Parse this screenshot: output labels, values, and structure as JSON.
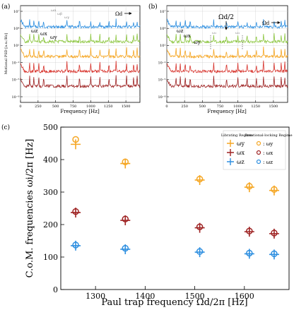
{
  "colors": {
    "blue": "#2e8fe0",
    "green": "#8cc63f",
    "orange": "#f5a623",
    "red": "#d7322b",
    "darkred": "#9e2222",
    "grid_gray": "#d0d0d0"
  },
  "panel_a": {
    "label": "(a)",
    "ylabel": "Motional PSD [a.u./Hz]",
    "xlabel": "Frequency [Hz]",
    "xticks": [
      "0",
      "250",
      "500",
      "750",
      "1000",
      "1250",
      "1500"
    ],
    "yticks": [
      "10⁷",
      "10⁴",
      "10¹",
      "10⁻²",
      "10⁻⁵",
      "10⁻⁸"
    ],
    "omega_d": "Ωd",
    "annot_gray": [
      "ωα",
      "ωβ",
      "ωγ"
    ],
    "annot_black": [
      "ωz",
      "ωx",
      "ωy"
    ]
  },
  "panel_b": {
    "label": "(b)",
    "xlabel": "Frequency [Hz]",
    "xticks": [
      "0",
      "250",
      "500",
      "750",
      "1000",
      "1250",
      "1500"
    ],
    "yticks": [
      "10⁷",
      "10⁴",
      "10¹",
      "10⁻²",
      "10⁻⁵",
      "10⁻⁸"
    ],
    "omega_d": "Ωd",
    "omega_d_half": "Ωd/2",
    "annot_black": [
      "ωz",
      "ωx",
      "ωy"
    ],
    "annot_gray": [
      "ω₃",
      "ω₃"
    ]
  },
  "panel_c": {
    "label": "(c)",
    "legend_col1": "Librating Regime",
    "legend_col2": "Rotational-locking Regime",
    "legend_entries": [
      "ωy",
      "ωx",
      "ωz"
    ]
  },
  "chart_data": [
    {
      "type": "line",
      "panel": "(a)",
      "xlabel": "Frequency [Hz]",
      "ylabel": "Motional PSD [a.u./Hz]",
      "xlim": [
        0,
        1700
      ],
      "scale": "log-y",
      "series": [
        {
          "color": "#2e8fe0"
        },
        {
          "color": "#8cc63f"
        },
        {
          "color": "#f5a623"
        },
        {
          "color": "#d7322b"
        },
        {
          "color": "#9e2222"
        }
      ]
    },
    {
      "type": "line",
      "panel": "(b)",
      "xlabel": "Frequency [Hz]",
      "xlim": [
        0,
        1700
      ],
      "scale": "log-y",
      "series": [
        {
          "color": "#2e8fe0"
        },
        {
          "color": "#8cc63f"
        },
        {
          "color": "#f5a623"
        },
        {
          "color": "#d7322b"
        },
        {
          "color": "#9e2222"
        }
      ]
    },
    {
      "type": "scatter",
      "panel": "(c)",
      "xlabel": "Paul trap frequency Ωd/2π [Hz]",
      "ylabel": "C.o.M. frequencies ωi/2π [Hz]",
      "xlim": [
        1230,
        1690
      ],
      "ylim": [
        0,
        500
      ],
      "xticks": [
        1300,
        1400,
        1500,
        1600
      ],
      "yticks": [
        0,
        100,
        200,
        300,
        400,
        500
      ],
      "grid": false,
      "legend": "top-right",
      "series": [
        {
          "name": "ωy",
          "regime": "Librating",
          "color": "#f5a623",
          "marker": "plus",
          "x": [
            1260,
            1360,
            1510,
            1610,
            1660
          ],
          "y": [
            447,
            388,
            337,
            315,
            305
          ]
        },
        {
          "name": "ωx",
          "regime": "Librating",
          "color": "#9e2222",
          "marker": "plus",
          "x": [
            1260,
            1360,
            1510,
            1610,
            1660
          ],
          "y": [
            237,
            213,
            190,
            178,
            172
          ]
        },
        {
          "name": "ωz",
          "regime": "Librating",
          "color": "#2e8fe0",
          "marker": "plus",
          "x": [
            1260,
            1360,
            1510,
            1610,
            1660
          ],
          "y": [
            135,
            124,
            115,
            110,
            108
          ]
        },
        {
          "name": "ωy",
          "regime": "Rotational-locking",
          "color": "#f5a623",
          "marker": "circle",
          "x": [
            1260,
            1360,
            1510,
            1610,
            1660
          ],
          "y": [
            462,
            393,
            340,
            318,
            308
          ]
        },
        {
          "name": "ωx",
          "regime": "Rotational-locking",
          "color": "#9e2222",
          "marker": "circle",
          "x": [
            1260,
            1360,
            1510,
            1610,
            1660
          ],
          "y": [
            240,
            217,
            193,
            180,
            174
          ]
        },
        {
          "name": "ωz",
          "regime": "Rotational-locking",
          "color": "#2e8fe0",
          "marker": "circle",
          "x": [
            1260,
            1360,
            1510,
            1610,
            1660
          ],
          "y": [
            137,
            127,
            117,
            112,
            110
          ]
        }
      ]
    }
  ]
}
